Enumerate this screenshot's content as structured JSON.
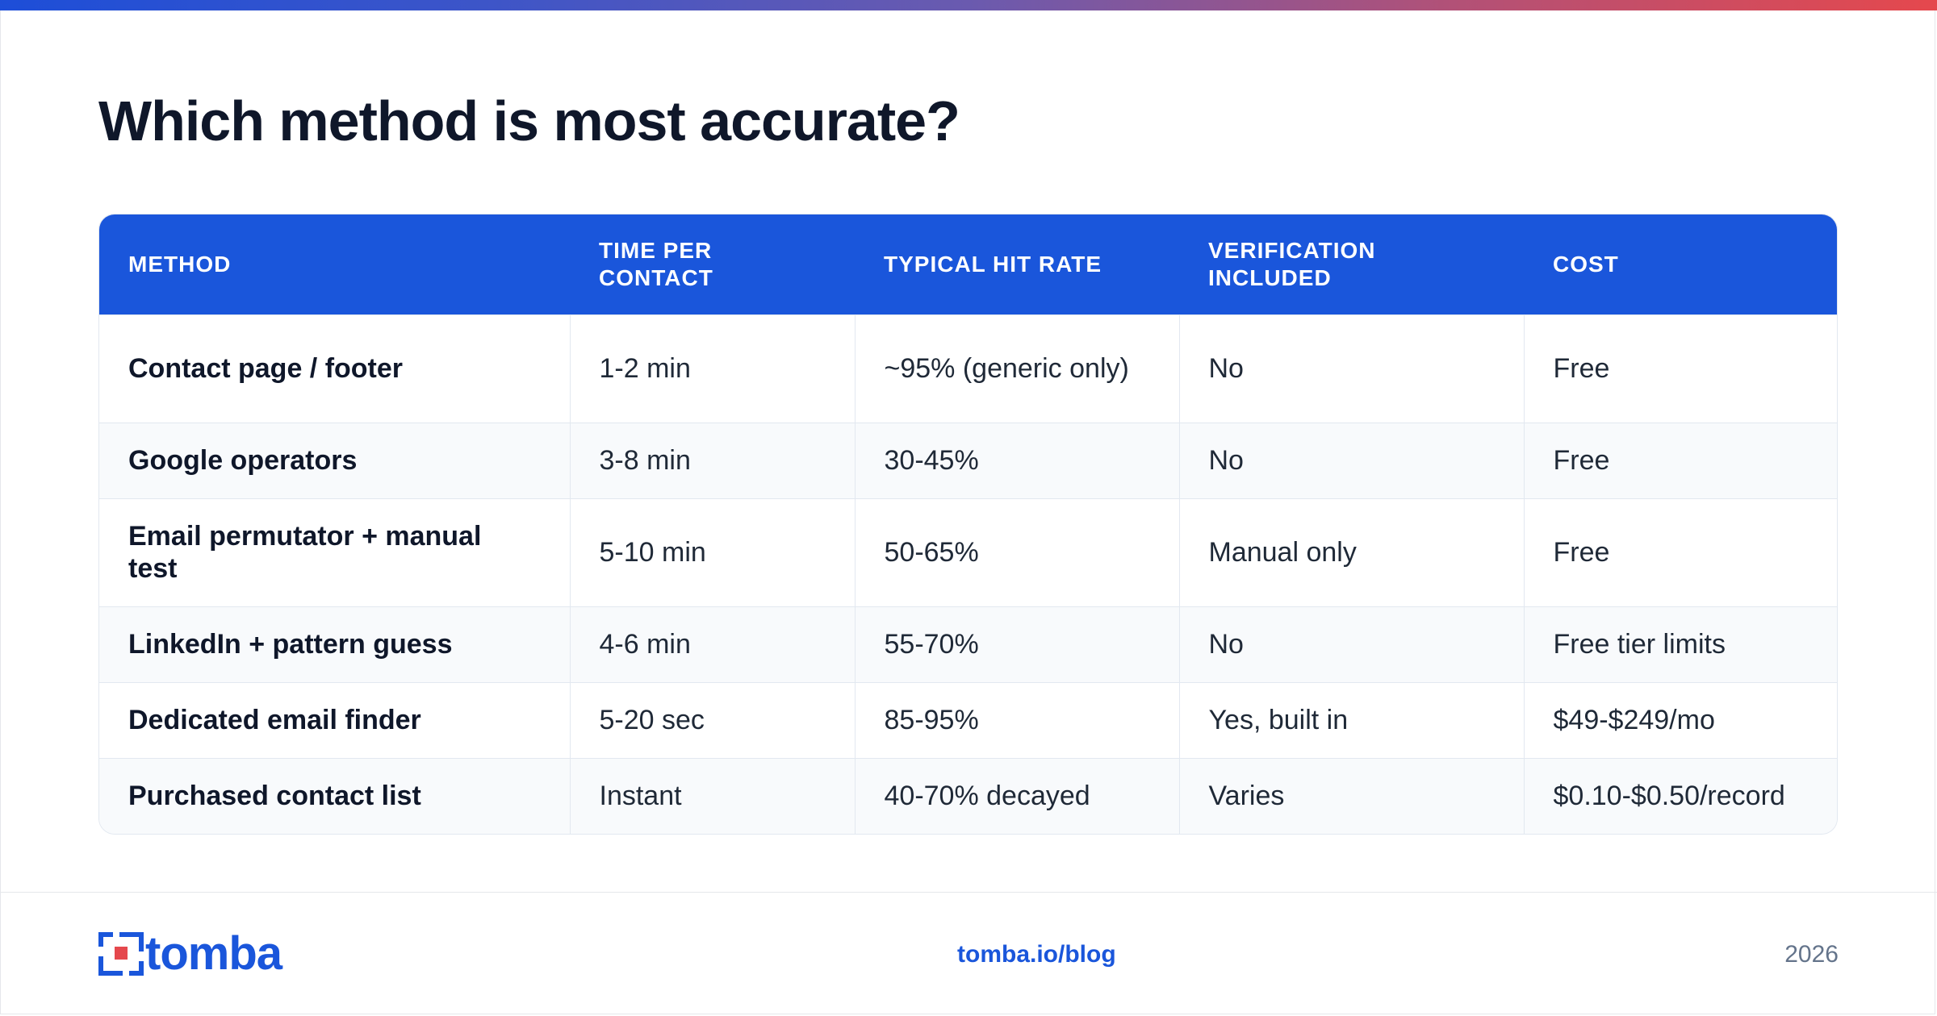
{
  "page": {
    "title": "Which method is most accurate?"
  },
  "table": {
    "headers": [
      "METHOD",
      "TIME PER CONTACT",
      "TYPICAL HIT RATE",
      "VERIFICATION INCLUDED",
      "COST"
    ],
    "rows": [
      [
        "Contact page / footer",
        "1-2 min",
        "~95% (generic only)",
        "No",
        "Free"
      ],
      [
        "Google operators",
        "3-8 min",
        "30-45%",
        "No",
        "Free"
      ],
      [
        "Email permutator + manual test",
        "5-10 min",
        "50-65%",
        "Manual only",
        "Free"
      ],
      [
        "LinkedIn + pattern guess",
        "4-6 min",
        "55-70%",
        "No",
        "Free tier limits"
      ],
      [
        "Dedicated email finder",
        "5-20 sec",
        "85-95%",
        "Yes, built in",
        "$49-$249/mo"
      ],
      [
        "Purchased contact list",
        "Instant",
        "40-70% decayed",
        "Varies",
        "$0.10-$0.50/record"
      ]
    ]
  },
  "footer": {
    "logo_text": "tomba",
    "link": "tomba.io/blog",
    "year": "2026"
  },
  "colors": {
    "accent": "#1a56db",
    "gradient_start": "#1d4ed8",
    "gradient_end": "#e5484d"
  }
}
